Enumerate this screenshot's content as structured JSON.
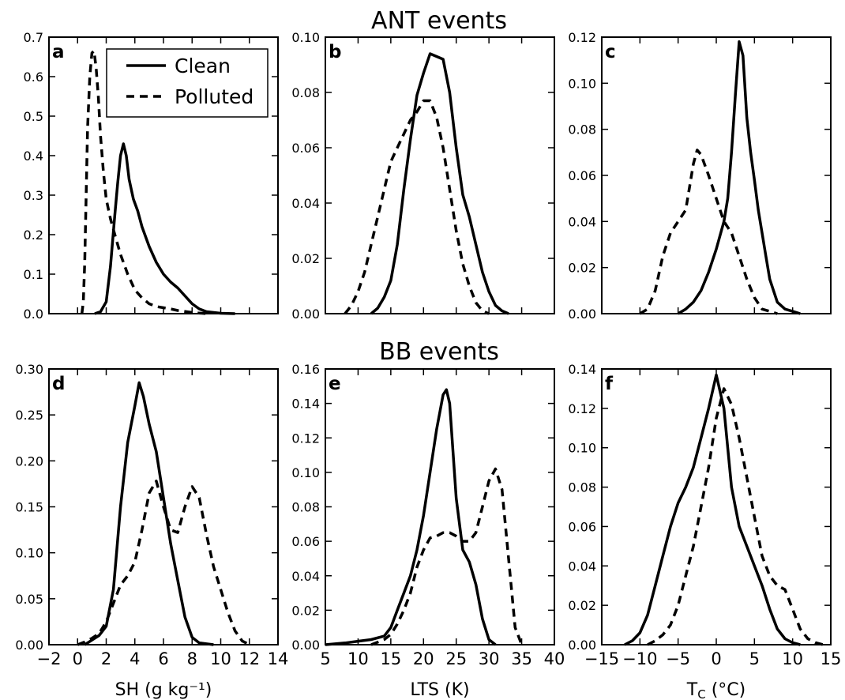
{
  "figure": {
    "row_titles": [
      "ANT events",
      "BB events"
    ],
    "legend": {
      "entries": [
        {
          "label": "Clean",
          "style": "solid"
        },
        {
          "label": "Polluted",
          "style": "dashed"
        }
      ]
    },
    "colors": {
      "line": "#000000",
      "background": "#ffffff"
    }
  },
  "chart_data": [
    {
      "panel": "a",
      "type": "line",
      "xlabel": "",
      "ylabel": "",
      "xlim": [
        -2,
        14
      ],
      "ylim": [
        0,
        0.7
      ],
      "yticks": [
        0,
        0.1,
        0.2,
        0.3,
        0.4,
        0.5,
        0.6,
        0.7
      ],
      "ytick_labels": [
        "0.0",
        "0.1",
        "0.2",
        "0.3",
        "0.4",
        "0.5",
        "0.6",
        "0.7"
      ],
      "xticks": [
        -2,
        0,
        2,
        4,
        6,
        8,
        10,
        12,
        14
      ],
      "xtick_labels": [],
      "series": [
        {
          "name": "Clean",
          "style": "solid",
          "x": [
            1.2,
            1.6,
            2.0,
            2.3,
            2.6,
            2.8,
            3.0,
            3.2,
            3.4,
            3.6,
            3.9,
            4.2,
            4.5,
            5.0,
            5.5,
            6.0,
            6.5,
            7.0,
            7.5,
            8.0,
            8.5,
            9.0,
            10.0,
            11.0
          ],
          "y": [
            0,
            0.005,
            0.03,
            0.12,
            0.25,
            0.33,
            0.4,
            0.43,
            0.4,
            0.34,
            0.29,
            0.26,
            0.22,
            0.17,
            0.13,
            0.1,
            0.08,
            0.065,
            0.045,
            0.025,
            0.012,
            0.005,
            0.001,
            0
          ]
        },
        {
          "name": "Polluted",
          "style": "dashed",
          "x": [
            0.3,
            0.4,
            0.5,
            0.6,
            0.7,
            0.85,
            1.0,
            1.15,
            1.3,
            1.45,
            1.6,
            1.8,
            2.0,
            2.3,
            2.6,
            3.0,
            3.5,
            4.0,
            4.5,
            5.0,
            5.5,
            6.0,
            6.5,
            7.0,
            8.0,
            9.0
          ],
          "y": [
            0,
            0.03,
            0.13,
            0.3,
            0.47,
            0.6,
            0.66,
            0.665,
            0.62,
            0.55,
            0.45,
            0.36,
            0.29,
            0.24,
            0.2,
            0.15,
            0.1,
            0.06,
            0.04,
            0.025,
            0.018,
            0.015,
            0.012,
            0.008,
            0.003,
            0
          ]
        }
      ]
    },
    {
      "panel": "b",
      "type": "line",
      "xlabel": "",
      "ylabel": "",
      "xlim": [
        5,
        40
      ],
      "ylim": [
        0,
        0.1
      ],
      "yticks": [
        0,
        0.02,
        0.04,
        0.06,
        0.08,
        0.1
      ],
      "ytick_labels": [
        "0.00",
        "0.02",
        "0.04",
        "0.06",
        "0.08",
        "0.10"
      ],
      "xticks": [
        5,
        10,
        15,
        20,
        25,
        30,
        35,
        40
      ],
      "xtick_labels": [],
      "series": [
        {
          "name": "Clean",
          "style": "solid",
          "x": [
            12,
            13,
            14,
            15,
            16,
            17,
            18,
            19,
            20,
            21,
            22,
            23,
            24,
            25,
            26,
            27,
            28,
            29,
            30,
            31,
            32,
            33
          ],
          "y": [
            0,
            0.002,
            0.006,
            0.012,
            0.025,
            0.045,
            0.063,
            0.079,
            0.087,
            0.094,
            0.093,
            0.092,
            0.08,
            0.06,
            0.043,
            0.035,
            0.025,
            0.015,
            0.008,
            0.003,
            0.001,
            0
          ]
        },
        {
          "name": "Polluted",
          "style": "dashed",
          "x": [
            8,
            9,
            10,
            11,
            12,
            13,
            14,
            15,
            16,
            17,
            18,
            19,
            20,
            21,
            22,
            23,
            24,
            25,
            26,
            27,
            28,
            29,
            30
          ],
          "y": [
            0,
            0.003,
            0.008,
            0.015,
            0.025,
            0.035,
            0.045,
            0.055,
            0.06,
            0.065,
            0.07,
            0.073,
            0.077,
            0.077,
            0.071,
            0.06,
            0.045,
            0.03,
            0.018,
            0.01,
            0.004,
            0.001,
            0
          ]
        }
      ]
    },
    {
      "panel": "c",
      "type": "line",
      "xlabel": "",
      "ylabel": "",
      "xlim": [
        -15,
        15
      ],
      "ylim": [
        0,
        0.12
      ],
      "yticks": [
        0,
        0.02,
        0.04,
        0.06,
        0.08,
        0.1,
        0.12
      ],
      "ytick_labels": [
        "0.00",
        "0.02",
        "0.04",
        "0.06",
        "0.08",
        "0.10",
        "0.12"
      ],
      "xticks": [
        -15,
        -10,
        -5,
        0,
        5,
        10,
        15
      ],
      "xtick_labels": [],
      "series": [
        {
          "name": "Clean",
          "style": "solid",
          "x": [
            -5,
            -4,
            -3,
            -2,
            -1,
            0,
            1,
            1.5,
            2,
            2.5,
            3,
            3.5,
            4,
            4.5,
            5,
            5.5,
            6,
            6.5,
            7,
            8,
            9,
            10,
            11
          ],
          "y": [
            0,
            0.002,
            0.005,
            0.01,
            0.018,
            0.028,
            0.04,
            0.05,
            0.07,
            0.095,
            0.118,
            0.112,
            0.085,
            0.07,
            0.058,
            0.045,
            0.035,
            0.025,
            0.015,
            0.005,
            0.002,
            0.001,
            0
          ]
        },
        {
          "name": "Polluted",
          "style": "dashed",
          "x": [
            -10,
            -9,
            -8,
            -7,
            -6,
            -5,
            -4,
            -3.5,
            -3,
            -2.5,
            -2,
            -1,
            0,
            1,
            2,
            3,
            4,
            5,
            6,
            7,
            8
          ],
          "y": [
            0,
            0.002,
            0.01,
            0.025,
            0.035,
            0.04,
            0.045,
            0.055,
            0.065,
            0.071,
            0.069,
            0.06,
            0.05,
            0.04,
            0.035,
            0.025,
            0.015,
            0.007,
            0.002,
            0.001,
            0
          ]
        }
      ]
    },
    {
      "panel": "d",
      "type": "line",
      "xlabel": "SH (g kg⁻¹)",
      "ylabel": "",
      "xlim": [
        -2,
        14
      ],
      "ylim": [
        0,
        0.3
      ],
      "yticks": [
        0,
        0.05,
        0.1,
        0.15,
        0.2,
        0.25,
        0.3
      ],
      "ytick_labels": [
        "0.00",
        "0.05",
        "0.10",
        "0.15",
        "0.20",
        "0.25",
        "0.30"
      ],
      "xticks": [
        -2,
        0,
        2,
        4,
        6,
        8,
        10,
        12,
        14
      ],
      "xtick_labels": [
        "−2",
        "0",
        "2",
        "4",
        "6",
        "8",
        "10",
        "12",
        "14"
      ],
      "series": [
        {
          "name": "Clean",
          "style": "solid",
          "x": [
            0.5,
            1.0,
            1.5,
            2.0,
            2.5,
            3.0,
            3.5,
            4.0,
            4.3,
            4.6,
            5.0,
            5.5,
            6.0,
            6.5,
            7.0,
            7.5,
            8.0,
            8.5,
            9.0,
            9.5
          ],
          "y": [
            0,
            0.005,
            0.01,
            0.02,
            0.06,
            0.15,
            0.22,
            0.26,
            0.285,
            0.27,
            0.24,
            0.21,
            0.16,
            0.11,
            0.07,
            0.03,
            0.008,
            0.002,
            0.001,
            0
          ]
        },
        {
          "name": "Polluted",
          "style": "dashed",
          "x": [
            0,
            0.5,
            1,
            1.5,
            2,
            2.5,
            3,
            3.5,
            4,
            4.5,
            5,
            5.5,
            6,
            6.5,
            7,
            7.5,
            8,
            8.5,
            9,
            9.5,
            10,
            10.5,
            11,
            11.5,
            12
          ],
          "y": [
            0,
            0.003,
            0.007,
            0.012,
            0.025,
            0.045,
            0.065,
            0.075,
            0.09,
            0.125,
            0.165,
            0.178,
            0.15,
            0.125,
            0.122,
            0.15,
            0.172,
            0.16,
            0.12,
            0.085,
            0.06,
            0.035,
            0.015,
            0.004,
            0
          ]
        }
      ]
    },
    {
      "panel": "e",
      "type": "line",
      "xlabel": "LTS (K)",
      "ylabel": "",
      "xlim": [
        5,
        40
      ],
      "ylim": [
        0,
        0.16
      ],
      "yticks": [
        0,
        0.02,
        0.04,
        0.06,
        0.08,
        0.1,
        0.12,
        0.14,
        0.16
      ],
      "ytick_labels": [
        "0.00",
        "0.02",
        "0.04",
        "0.06",
        "0.08",
        "0.10",
        "0.12",
        "0.14",
        "0.16"
      ],
      "xticks": [
        5,
        10,
        15,
        20,
        25,
        30,
        35,
        40
      ],
      "xtick_labels": [
        "5",
        "10",
        "15",
        "20",
        "25",
        "30",
        "35",
        "40"
      ],
      "series": [
        {
          "name": "Clean",
          "style": "solid",
          "x": [
            5,
            8,
            10,
            12,
            14,
            15,
            16,
            17,
            18,
            19,
            20,
            21,
            22,
            23,
            23.5,
            24,
            25,
            26,
            27,
            28,
            29,
            30,
            31
          ],
          "y": [
            0,
            0.001,
            0.002,
            0.003,
            0.005,
            0.01,
            0.02,
            0.03,
            0.04,
            0.055,
            0.075,
            0.1,
            0.125,
            0.145,
            0.148,
            0.14,
            0.085,
            0.055,
            0.048,
            0.035,
            0.015,
            0.003,
            0
          ]
        },
        {
          "name": "Polluted",
          "style": "dashed",
          "x": [
            12,
            14,
            15,
            16,
            17,
            18,
            19,
            20,
            21,
            22,
            23,
            24,
            25,
            26,
            27,
            28,
            29,
            30,
            31,
            32,
            33,
            34,
            35
          ],
          "y": [
            0,
            0.003,
            0.006,
            0.012,
            0.02,
            0.03,
            0.045,
            0.055,
            0.062,
            0.063,
            0.065,
            0.065,
            0.063,
            0.06,
            0.06,
            0.065,
            0.08,
            0.095,
            0.102,
            0.09,
            0.05,
            0.01,
            0
          ]
        }
      ]
    },
    {
      "panel": "f",
      "type": "line",
      "xlabel": "T_C (°C)",
      "ylabel": "",
      "xlim": [
        -15,
        15
      ],
      "ylim": [
        0,
        0.14
      ],
      "yticks": [
        0,
        0.02,
        0.04,
        0.06,
        0.08,
        0.1,
        0.12,
        0.14
      ],
      "ytick_labels": [
        "0.00",
        "0.02",
        "0.04",
        "0.06",
        "0.08",
        "0.10",
        "0.12",
        "0.14"
      ],
      "xticks": [
        -15,
        -10,
        -5,
        0,
        5,
        10,
        15
      ],
      "xtick_labels": [
        "−15",
        "−10",
        "−5",
        "0",
        "5",
        "10",
        "15"
      ],
      "series": [
        {
          "name": "Clean",
          "style": "solid",
          "x": [
            -12,
            -11,
            -10,
            -9,
            -8,
            -7,
            -6,
            -5,
            -4,
            -3,
            -2,
            -1,
            0,
            1,
            2,
            3,
            4,
            5,
            6,
            7,
            8,
            9,
            10,
            11
          ],
          "y": [
            0,
            0.002,
            0.006,
            0.015,
            0.03,
            0.045,
            0.06,
            0.072,
            0.08,
            0.09,
            0.105,
            0.12,
            0.137,
            0.12,
            0.08,
            0.06,
            0.05,
            0.04,
            0.03,
            0.018,
            0.008,
            0.003,
            0.001,
            0
          ]
        },
        {
          "name": "Polluted",
          "style": "dashed",
          "x": [
            -9,
            -8,
            -7,
            -6,
            -5,
            -4,
            -3,
            -2,
            -1,
            0,
            1,
            2,
            3,
            4,
            5,
            6,
            7,
            8,
            9,
            10,
            11,
            12,
            13,
            14
          ],
          "y": [
            0,
            0.002,
            0.005,
            0.01,
            0.02,
            0.035,
            0.05,
            0.07,
            0.09,
            0.115,
            0.13,
            0.122,
            0.105,
            0.085,
            0.065,
            0.045,
            0.035,
            0.03,
            0.028,
            0.018,
            0.008,
            0.003,
            0.001,
            0
          ]
        }
      ]
    }
  ]
}
